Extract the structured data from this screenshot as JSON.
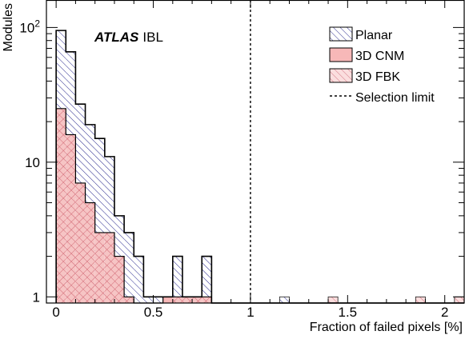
{
  "chart_data": {
    "type": "bar",
    "stacked": true,
    "histogram": true,
    "x_unit_label": "Fraction of failed pixels [%]",
    "y_unit_label": "Modules",
    "y_scale": "log",
    "xlim": [
      -0.05,
      2.1
    ],
    "ylim": [
      0.9,
      160
    ],
    "x_ticks": [
      0,
      0.5,
      1,
      1.5,
      2
    ],
    "x_tick_labels": [
      "0",
      "0.5",
      "1",
      "1.5",
      "2"
    ],
    "y_ticks": [
      1,
      10,
      100
    ],
    "y_tick_labels": [
      "1",
      "10",
      "10^2"
    ],
    "label_bold": "ATLAS",
    "label_rest": "IBL",
    "bin_width": 0.05,
    "bin_edges_start": 0.0,
    "series": [
      {
        "name": "3D FBK",
        "color": "#f2a0a0",
        "pattern": "crosshatch",
        "values": [
          25,
          16,
          7,
          5,
          3,
          3,
          2,
          1,
          0,
          0,
          0,
          0,
          1,
          1,
          1,
          1,
          0,
          0,
          0,
          0,
          0,
          0,
          0,
          0,
          0,
          0,
          0,
          0,
          0,
          0,
          0,
          0,
          0,
          0,
          0,
          0,
          0,
          0,
          0,
          0,
          0,
          0
        ]
      },
      {
        "name": "3D CNM",
        "color": "#f7b8b8",
        "pattern": "solid",
        "values": [
          0,
          0,
          0,
          0,
          0,
          0,
          0,
          0,
          0,
          0,
          0,
          1,
          0,
          0,
          0,
          0,
          0,
          0,
          0,
          0,
          0,
          0,
          0,
          0,
          0,
          0,
          0,
          0,
          0,
          0,
          0,
          0,
          0,
          0,
          0,
          0,
          0,
          0,
          0,
          0,
          0,
          0
        ]
      },
      {
        "name": "Planar",
        "color": "#2b2b8f",
        "pattern": "diagonal",
        "values": [
          70,
          50,
          20,
          14,
          12,
          8,
          2,
          2,
          2,
          1,
          1,
          0,
          1,
          0,
          0,
          1,
          0,
          0,
          0,
          0,
          0,
          0,
          0,
          0,
          0,
          0,
          0,
          0,
          0,
          0,
          0,
          0,
          0,
          0,
          0,
          0,
          0,
          0,
          0,
          0,
          0,
          0
        ]
      }
    ],
    "totals": [
      95,
      66,
      27,
      19,
      15,
      11,
      4,
      3,
      2,
      1,
      1,
      1,
      2,
      1,
      1,
      2,
      0,
      0,
      0,
      0,
      0,
      0,
      0,
      0,
      0,
      0,
      0,
      0,
      0,
      0,
      0,
      0,
      0,
      0,
      0,
      0,
      0,
      0,
      0,
      0,
      0,
      0
    ],
    "extra_bins": [
      {
        "x0": 1.15,
        "x1": 1.2,
        "series": "Planar",
        "value": 1
      },
      {
        "x0": 1.4,
        "x1": 1.45,
        "series": "3D FBK",
        "value": 1
      },
      {
        "x0": 1.85,
        "x1": 1.9,
        "series": "3D FBK",
        "value": 1
      },
      {
        "x0": 2.05,
        "x1": 2.1,
        "series": "3D FBK",
        "value": 1
      }
    ],
    "selection_limit": {
      "x": 1.0,
      "name": "Selection limit",
      "style": "dashed"
    },
    "legend": [
      "Planar",
      "3D CNM",
      "3D FBK",
      "Selection limit"
    ],
    "legend_position": "top-right"
  }
}
